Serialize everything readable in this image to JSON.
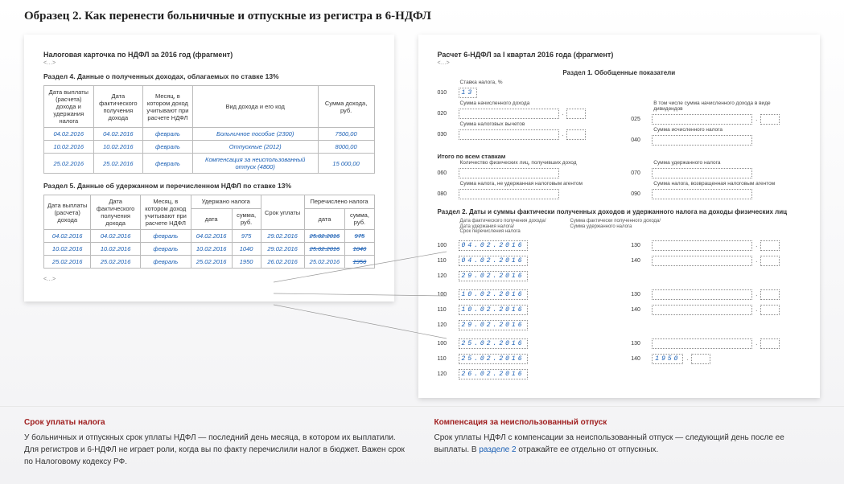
{
  "page_title": "Образец 2. Как перенести больничные и отпускные из регистра в 6-НДФЛ",
  "left": {
    "title": "Налоговая карточка по НДФЛ за 2016 год (фрагмент)",
    "ellipsis": "<…>",
    "section4_title": "Раздел 4. Данные о полученных доходах, облагаемых по ставке 13%",
    "table4": {
      "headers": [
        "Дата выплаты (расчета) дохода и удержания налога",
        "Дата фактического получения дохода",
        "Месяц, в котором доход учитывают при расчете НДФЛ",
        "Вид дохода и его код",
        "Сумма дохода, руб."
      ],
      "rows": [
        [
          "04.02.2016",
          "04.02.2016",
          "февраль",
          "Больничное пособие (2300)",
          "7500,00"
        ],
        [
          "10.02.2016",
          "10.02.2016",
          "февраль",
          "Отпускные (2012)",
          "8000,00"
        ],
        [
          "25.02.2016",
          "25.02.2016",
          "февраль",
          "Компенсация за неиспользованный отпуск (4800)",
          "15 000,00"
        ]
      ]
    },
    "section5_title": "Раздел 5. Данные об удержанном и перечисленном НДФЛ по ставке 13%",
    "table5": {
      "head_row1": [
        "Дата выплаты (расчета) дохода",
        "Дата фактического получения дохода",
        "Месяц, в котором доход учитывают при расчете НДФЛ",
        "Удержано налога",
        "Срок уплаты",
        "Перечислено налога"
      ],
      "head_sub_withheld": [
        "дата",
        "сумма, руб."
      ],
      "head_sub_paid": [
        "дата",
        "сумма, руб."
      ],
      "rows": [
        [
          "04.02.2016",
          "04.02.2016",
          "февраль",
          "04.02.2016",
          "975",
          "29.02.2016",
          "25.02.2016",
          "975"
        ],
        [
          "10.02.2016",
          "10.02.2016",
          "февраль",
          "10.02.2016",
          "1040",
          "29.02.2016",
          "25.02.2016",
          "1040"
        ],
        [
          "25.02.2016",
          "25.02.2016",
          "февраль",
          "25.02.2016",
          "1950",
          "26.02.2016",
          "25.02.2016",
          "1950"
        ]
      ]
    }
  },
  "right": {
    "title": "Расчет 6-НДФЛ за I квартал 2016 года (фрагмент)",
    "ellipsis": "<…>",
    "section1_title": "Раздел 1. Обобщенные показатели",
    "rate_label": "Ставка налога, %",
    "rate_value": "13",
    "l010": "010",
    "l020": "020",
    "l020_label": "Сумма начисленного дохода",
    "l025": "025",
    "l025_label": "В том числе сумма начисленного дохода в виде дивидендов",
    "l030": "030",
    "l030_label": "Сумма налоговых вычетов",
    "l040": "040",
    "l040_label": "Сумма исчисленного налога",
    "itogo": "Итого по всем ставкам",
    "l060": "060",
    "l060_label": "Количество физических лиц, получивших доход",
    "l070": "070",
    "l070_label": "Сумма удержанного налога",
    "l080": "080",
    "l080_label": "Сумма налога, не удержанная налоговым агентом",
    "l090": "090",
    "l090_label": "Сумма налога, возвращенная налоговым агентом",
    "section2_title": "Раздел 2. Даты и суммы фактически полученных доходов и удержанного налога на доходы физических лиц",
    "col_left_label": "Дата фактического получения дохода/\nДата удержания налога/\nСрок перечисления налога",
    "col_right_label": "Сумма фактически полученного дохода/\nСумма удержанного налога",
    "blocks": [
      {
        "l100": "04.02.2016",
        "l110": "04.02.2016",
        "l120": "29.02.2016",
        "l130": "",
        "l140": ""
      },
      {
        "l100": "10.02.2016",
        "l110": "10.02.2016",
        "l120": "29.02.2016",
        "l130": "",
        "l140": ""
      },
      {
        "l100": "25.02.2016",
        "l110": "25.02.2016",
        "l120": "26.02.2016",
        "l130": "",
        "l140": "1950"
      }
    ],
    "line_labels": {
      "n100": "100",
      "n110": "110",
      "n120": "120",
      "n130": "130",
      "n140": "140"
    }
  },
  "notes": {
    "left_title": "Срок уплаты налога",
    "left_body": "У больничных и отпускных срок уплаты НДФЛ — последний день месяца, в котором их выплатили. Для регистров и 6-НДФЛ не играет роли, когда вы по факту перечислили налог в бюджет. Важен срок по Налоговому кодексу РФ.",
    "right_title": "Компенсация за неиспользованный отпуск",
    "right_body_1": "Срок уплаты НДФЛ с компенсации за неиспользованный отпуск — следующий день после ее выплаты. В ",
    "right_link": "разделе 2",
    "right_body_2": " отражайте ее отдельно от отпускных."
  }
}
